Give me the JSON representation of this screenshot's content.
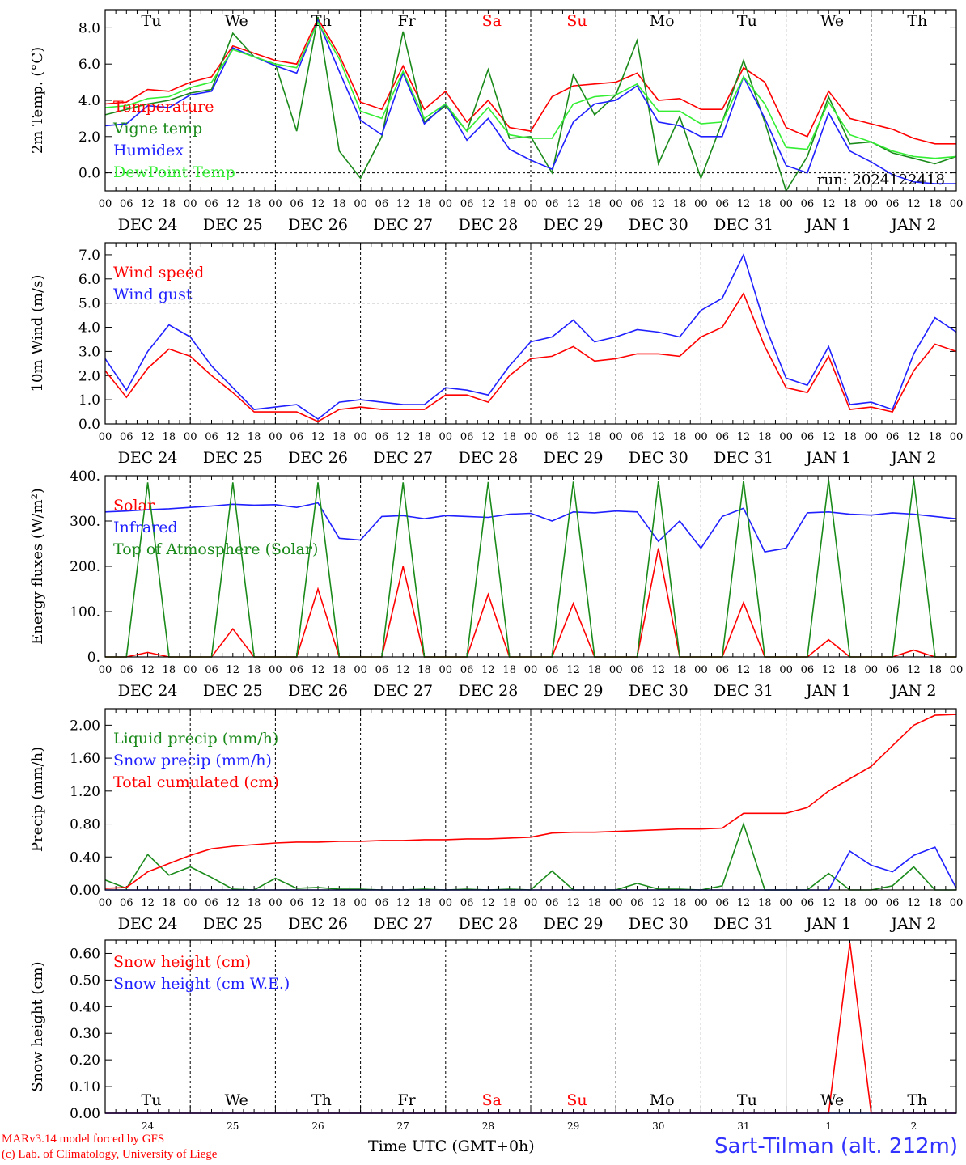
{
  "footer": {
    "credit_line1": "MARv3.14 model forced by GFS",
    "credit_line2": "(c) Lab. of Climatology, University of Liege",
    "station": "Sart-Tilman (alt. 212m)",
    "time_axis_title": "Time UTC (GMT+0h)"
  },
  "colors": {
    "red": "#ff0000",
    "green": "#1a8a1a",
    "blue": "#2020ff",
    "light_green": "#33ee33",
    "weekend": "#ff0000"
  },
  "chart_data": [
    {
      "type": "line",
      "ylabel": "2m Temp. (°C)",
      "ylim": [
        -1,
        9
      ],
      "yticks": [
        0,
        2,
        4,
        6,
        8
      ],
      "ytick_labels": [
        "0.0",
        "2.0",
        "4.0",
        "6.0",
        "8.0"
      ],
      "reference_line": 0,
      "day_labels": [
        "Tu",
        "We",
        "Th",
        "Fr",
        "Sa",
        "Su",
        "Mo",
        "Tu",
        "We",
        "Th"
      ],
      "annotation": "run: 2024122418",
      "x_hours": [
        0,
        6,
        12,
        18,
        24,
        30,
        36,
        42,
        48,
        54,
        60,
        66,
        72,
        78,
        84,
        90,
        96,
        102,
        108,
        114,
        120,
        126,
        132,
        138,
        144,
        150,
        156,
        162,
        168,
        174,
        180,
        186,
        192,
        198,
        204,
        210,
        216,
        222,
        228,
        234,
        240
      ],
      "series": [
        {
          "name": "Temperature",
          "color": "#ff0000",
          "values": [
            3.8,
            3.9,
            4.6,
            4.5,
            5.0,
            5.3,
            7.0,
            6.6,
            6.2,
            6.0,
            8.5,
            6.5,
            3.9,
            3.5,
            5.9,
            3.5,
            4.5,
            2.8,
            4.0,
            2.5,
            2.3,
            4.2,
            4.8,
            4.9,
            5.0,
            5.5,
            4.0,
            4.1,
            3.5,
            3.5,
            5.8,
            5.0,
            2.5,
            2.0,
            4.5,
            3.0,
            2.7,
            2.4,
            1.9,
            1.6,
            1.6
          ]
        },
        {
          "name": "Vigne temp",
          "color": "#1a8a1a",
          "values": [
            3.2,
            3.5,
            3.8,
            4.0,
            4.4,
            4.6,
            7.7,
            6.4,
            6.0,
            2.3,
            8.6,
            1.2,
            -0.3,
            2.0,
            7.8,
            2.8,
            3.7,
            2.3,
            5.7,
            1.9,
            2.0,
            0.0,
            5.4,
            3.2,
            4.3,
            7.3,
            0.5,
            3.1,
            -0.3,
            2.8,
            6.2,
            2.8,
            -1.0,
            0.9,
            4.2,
            1.6,
            1.7,
            1.1,
            0.8,
            0.5,
            0.9
          ]
        },
        {
          "name": "Humidex",
          "color": "#2020ff",
          "values": [
            2.6,
            2.7,
            3.7,
            3.6,
            4.3,
            4.5,
            6.9,
            6.4,
            5.9,
            5.5,
            8.4,
            5.6,
            2.9,
            2.1,
            5.5,
            2.7,
            3.8,
            1.8,
            3.0,
            1.3,
            0.7,
            0.2,
            2.8,
            3.8,
            4.0,
            4.8,
            2.8,
            2.6,
            2.0,
            2.0,
            5.3,
            3.0,
            0.4,
            0.0,
            3.3,
            1.2,
            0.6,
            -0.1,
            -0.5,
            -0.6,
            -0.6
          ]
        },
        {
          "name": "DewPoint Temp",
          "color": "#33ee33",
          "values": [
            3.6,
            3.7,
            4.1,
            4.2,
            4.7,
            5.0,
            6.8,
            6.4,
            6.0,
            5.8,
            8.3,
            6.3,
            3.4,
            3.0,
            5.6,
            3.0,
            3.8,
            2.3,
            3.6,
            2.1,
            1.9,
            1.9,
            3.8,
            4.2,
            4.3,
            4.9,
            3.4,
            3.4,
            2.7,
            2.8,
            5.3,
            3.8,
            1.4,
            1.3,
            3.9,
            2.1,
            1.7,
            1.2,
            0.9,
            0.8,
            0.9
          ]
        }
      ]
    },
    {
      "type": "line",
      "ylabel": "10m Wind (m/s)",
      "ylim": [
        0,
        7.5
      ],
      "yticks": [
        0,
        1,
        2,
        3,
        4,
        5,
        6,
        7
      ],
      "ytick_labels": [
        "0.0",
        "1.0",
        "2.0",
        "3.0",
        "4.0",
        "5.0",
        "6.0",
        "7.0"
      ],
      "reference_line": 5,
      "x_hours": [
        0,
        6,
        12,
        18,
        24,
        30,
        36,
        42,
        48,
        54,
        60,
        66,
        72,
        78,
        84,
        90,
        96,
        102,
        108,
        114,
        120,
        126,
        132,
        138,
        144,
        150,
        156,
        162,
        168,
        174,
        180,
        186,
        192,
        198,
        204,
        210,
        216,
        222,
        228,
        234,
        240
      ],
      "series": [
        {
          "name": "Wind speed",
          "color": "#ff0000",
          "values": [
            2.2,
            1.1,
            2.3,
            3.1,
            2.8,
            2.0,
            1.3,
            0.5,
            0.5,
            0.5,
            0.1,
            0.6,
            0.7,
            0.6,
            0.6,
            0.6,
            1.2,
            1.2,
            0.9,
            2.0,
            2.7,
            2.8,
            3.2,
            2.6,
            2.7,
            2.9,
            2.9,
            2.8,
            3.6,
            4.0,
            5.4,
            3.2,
            1.5,
            1.3,
            2.8,
            0.6,
            0.7,
            0.5,
            2.2,
            3.3,
            3.0
          ]
        },
        {
          "name": "Wind gust",
          "color": "#2020ff",
          "values": [
            2.7,
            1.4,
            3.0,
            4.1,
            3.6,
            2.4,
            1.5,
            0.6,
            0.7,
            0.8,
            0.2,
            0.9,
            1.0,
            0.9,
            0.8,
            0.8,
            1.5,
            1.4,
            1.2,
            2.4,
            3.4,
            3.6,
            4.3,
            3.4,
            3.6,
            3.9,
            3.8,
            3.6,
            4.7,
            5.2,
            7.0,
            4.1,
            1.9,
            1.6,
            3.2,
            0.8,
            0.9,
            0.6,
            2.9,
            4.4,
            3.8
          ]
        }
      ]
    },
    {
      "type": "line",
      "ylabel": "Energy fluxes (W/m²)",
      "ylim": [
        0,
        400
      ],
      "yticks": [
        0,
        100,
        200,
        300,
        400
      ],
      "ytick_labels": [
        "0.",
        "100.",
        "200.",
        "300.",
        "400."
      ],
      "x_hours": [
        0,
        6,
        12,
        18,
        24,
        30,
        36,
        42,
        48,
        54,
        60,
        66,
        72,
        78,
        84,
        90,
        96,
        102,
        108,
        114,
        120,
        126,
        132,
        138,
        144,
        150,
        156,
        162,
        168,
        174,
        180,
        186,
        192,
        198,
        204,
        210,
        216,
        222,
        228,
        234,
        240
      ],
      "series": [
        {
          "name": "Solar",
          "color": "#ff0000",
          "values": [
            0,
            0,
            10,
            0,
            0,
            0,
            62,
            0,
            0,
            0,
            150,
            0,
            0,
            0,
            200,
            0,
            0,
            0,
            138,
            0,
            0,
            0,
            118,
            0,
            0,
            0,
            240,
            0,
            0,
            0,
            120,
            0,
            0,
            0,
            38,
            0,
            0,
            0,
            15,
            0,
            0
          ]
        },
        {
          "name": "Infrared",
          "color": "#2020ff",
          "values": [
            320,
            322,
            325,
            327,
            330,
            333,
            337,
            335,
            336,
            330,
            340,
            262,
            258,
            310,
            312,
            305,
            312,
            310,
            308,
            315,
            317,
            300,
            320,
            318,
            322,
            320,
            255,
            300,
            240,
            310,
            328,
            232,
            240,
            318,
            320,
            315,
            313,
            318,
            315,
            310,
            305
          ]
        },
        {
          "name": "Top of Atmosphere (Solar)",
          "color": "#1a8a1a",
          "values": [
            0,
            0,
            385,
            0,
            0,
            0,
            385,
            0,
            0,
            0,
            385,
            0,
            0,
            0,
            385,
            0,
            0,
            0,
            386,
            0,
            0,
            0,
            387,
            0,
            0,
            0,
            388,
            0,
            0,
            0,
            389,
            0,
            0,
            0,
            391,
            0,
            0,
            0,
            393,
            0,
            0
          ]
        }
      ]
    },
    {
      "type": "line",
      "ylabel": "Precip (mm/h)",
      "ylim": [
        0,
        2.2
      ],
      "yticks": [
        0,
        0.4,
        0.8,
        1.2,
        1.6,
        2.0
      ],
      "ytick_labels": [
        "0.00",
        "0.40",
        "0.80",
        "1.20",
        "1.60",
        "2.00"
      ],
      "x_hours": [
        0,
        6,
        12,
        18,
        24,
        30,
        36,
        42,
        48,
        54,
        60,
        66,
        72,
        78,
        84,
        90,
        96,
        102,
        108,
        114,
        120,
        126,
        132,
        138,
        144,
        150,
        156,
        162,
        168,
        174,
        180,
        186,
        192,
        198,
        204,
        210,
        216,
        222,
        228,
        234,
        240
      ],
      "series": [
        {
          "name": "Liquid precip (mm/h)",
          "color": "#1a8a1a",
          "values": [
            0.12,
            0.02,
            0.43,
            0.18,
            0.28,
            0.15,
            0.01,
            0.0,
            0.14,
            0.02,
            0.03,
            0.01,
            0.01,
            0.0,
            0.0,
            0.01,
            0.0,
            0.01,
            0.0,
            0.01,
            0.0,
            0.23,
            0.0,
            0.0,
            0.0,
            0.08,
            0.01,
            0.01,
            0.0,
            0.05,
            0.8,
            0.0,
            0.0,
            0.0,
            0.2,
            0.0,
            0.0,
            0.05,
            0.28,
            0.0,
            0.0
          ]
        },
        {
          "name": "Snow precip (mm/h)",
          "color": "#2020ff",
          "values": [
            0,
            0,
            0,
            0,
            0,
            0,
            0,
            0,
            0,
            0,
            0,
            0,
            0,
            0,
            0,
            0,
            0,
            0,
            0,
            0,
            0,
            0,
            0,
            0,
            0,
            0,
            0,
            0,
            0,
            0,
            0,
            0,
            0,
            0,
            0,
            0.47,
            0.3,
            0.22,
            0.42,
            0.52,
            0.02
          ]
        },
        {
          "name": "Total cumulated (cm)",
          "color": "#ff0000",
          "values": [
            0.02,
            0.03,
            0.22,
            0.32,
            0.42,
            0.5,
            0.53,
            0.55,
            0.57,
            0.58,
            0.58,
            0.59,
            0.59,
            0.6,
            0.6,
            0.61,
            0.61,
            0.62,
            0.62,
            0.63,
            0.64,
            0.69,
            0.7,
            0.7,
            0.71,
            0.72,
            0.73,
            0.74,
            0.74,
            0.75,
            0.93,
            0.93,
            0.93,
            1.0,
            1.2,
            1.35,
            1.5,
            1.75,
            2.0,
            2.12,
            2.13
          ]
        }
      ]
    },
    {
      "type": "line",
      "ylabel": "Snow height (cm)",
      "ylim": [
        0,
        0.65
      ],
      "yticks": [
        0,
        0.1,
        0.2,
        0.3,
        0.4,
        0.5,
        0.6
      ],
      "ytick_labels": [
        "0.00",
        "0.10",
        "0.20",
        "0.30",
        "0.40",
        "0.50",
        "0.60"
      ],
      "day_labels": [
        "Tu",
        "We",
        "Th",
        "Fr",
        "Sa",
        "Su",
        "Mo",
        "Tu",
        "We",
        "Th"
      ],
      "day_numbers": [
        "24",
        "25",
        "26",
        "27",
        "28",
        "29",
        "30",
        "31",
        "1",
        "2"
      ],
      "x_hours": [
        0,
        6,
        12,
        18,
        24,
        30,
        36,
        42,
        48,
        54,
        60,
        66,
        72,
        78,
        84,
        90,
        96,
        102,
        108,
        114,
        120,
        126,
        132,
        138,
        144,
        150,
        156,
        162,
        168,
        174,
        180,
        186,
        192,
        198,
        204,
        210,
        216,
        222,
        228,
        234,
        240
      ],
      "series": [
        {
          "name": "Snow height (cm)",
          "color": "#ff0000",
          "values": [
            0,
            0,
            0,
            0,
            0,
            0,
            0,
            0,
            0,
            0,
            0,
            0,
            0,
            0,
            0,
            0,
            0,
            0,
            0,
            0,
            0,
            0,
            0,
            0,
            0,
            0,
            0,
            0,
            0,
            0,
            0,
            0,
            0,
            0,
            0,
            0.64,
            0,
            0,
            0,
            0,
            0
          ]
        },
        {
          "name": "Snow height (cm W.E.)",
          "color": "#2020ff",
          "values": [
            0,
            0,
            0,
            0,
            0,
            0,
            0,
            0,
            0,
            0,
            0,
            0,
            0,
            0,
            0,
            0,
            0,
            0,
            0,
            0,
            0,
            0,
            0,
            0,
            0,
            0,
            0,
            0,
            0,
            0,
            0,
            0,
            0,
            0,
            0,
            0,
            0,
            0,
            0,
            0,
            0
          ]
        }
      ]
    }
  ],
  "x_axis": {
    "hour_labels": [
      "00",
      "06",
      "12",
      "18"
    ],
    "final_hour_label": "00",
    "date_labels": [
      "DEC 24",
      "DEC 25",
      "DEC 26",
      "DEC 27",
      "DEC 28",
      "DEC 29",
      "DEC 30",
      "DEC 31",
      "JAN  1",
      "JAN  2"
    ],
    "weekend_days": [
      "Sa",
      "Su"
    ]
  }
}
